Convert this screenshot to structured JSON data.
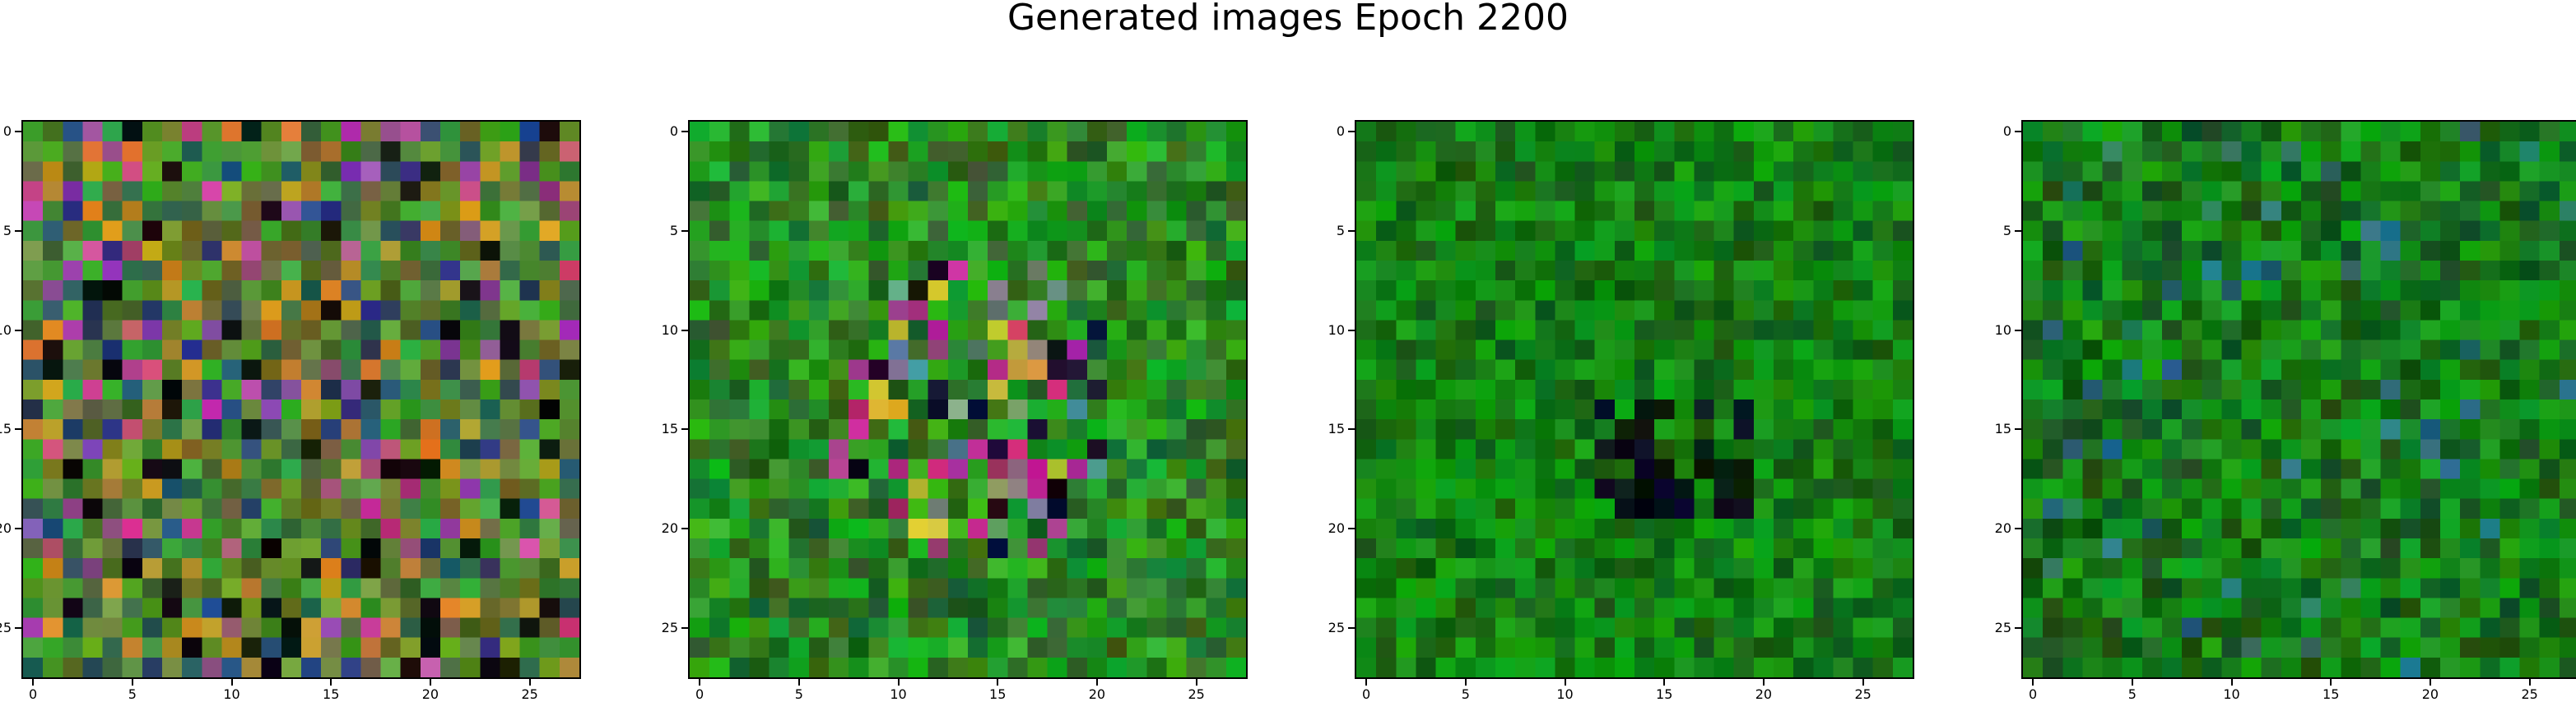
{
  "figure": {
    "title": "Generated images Epoch 2200"
  },
  "chart_data": [
    {
      "type": "heatmap",
      "grid_size": 28,
      "palette": "varied",
      "xticks": [
        0,
        5,
        10,
        15,
        20,
        25
      ],
      "yticks": [
        0,
        5,
        10,
        15,
        20,
        25
      ],
      "xtick_labels": [
        "0",
        "5",
        "10",
        "15",
        "20",
        "25"
      ],
      "ytick_labels": [
        "0",
        "5",
        "10",
        "15",
        "20",
        "25"
      ]
    },
    {
      "type": "heatmap",
      "grid_size": 28,
      "palette": "green-with-magenta-center",
      "xticks": [
        0,
        5,
        10,
        15,
        20,
        25
      ],
      "yticks": [
        0,
        5,
        10,
        15,
        20,
        25
      ],
      "xtick_labels": [
        "0",
        "5",
        "10",
        "15",
        "20",
        "25"
      ],
      "ytick_labels": [
        "0",
        "5",
        "10",
        "15",
        "20",
        "25"
      ]
    },
    {
      "type": "heatmap",
      "grid_size": 28,
      "palette": "green-with-dark-center",
      "xticks": [
        0,
        5,
        10,
        15,
        20,
        25
      ],
      "yticks": [
        0,
        5,
        10,
        15,
        20,
        25
      ],
      "xtick_labels": [
        "0",
        "5",
        "10",
        "15",
        "20",
        "25"
      ],
      "ytick_labels": [
        "0",
        "5",
        "10",
        "15",
        "20",
        "25"
      ]
    },
    {
      "type": "heatmap",
      "grid_size": 28,
      "palette": "green",
      "xticks": [
        0,
        5,
        10,
        15,
        20,
        25
      ],
      "yticks": [
        0,
        5,
        10,
        15,
        20,
        25
      ],
      "xtick_labels": [
        "0",
        "5",
        "10",
        "15",
        "20",
        "25"
      ],
      "ytick_labels": [
        "0",
        "5",
        "10",
        "15",
        "20",
        "25"
      ]
    }
  ]
}
